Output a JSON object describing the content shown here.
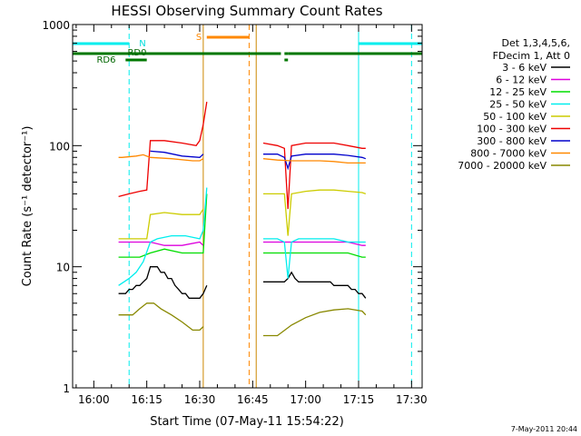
{
  "chart_data": {
    "type": "line",
    "title": "HESSI Observing Summary Count Rates",
    "xlabel": "Start Time (07-May-11 15:54:22)",
    "ylabel": "Count Rate (s⁻¹ detector⁻¹)",
    "yscale": "log",
    "xlim": [
      "15:54",
      "17:33"
    ],
    "ylim": [
      1,
      1000
    ],
    "x_ticks": [
      "16:00",
      "16:15",
      "16:30",
      "16:45",
      "17:00",
      "17:15",
      "17:30"
    ],
    "y_ticks": [
      "1",
      "10",
      "100",
      "1000"
    ],
    "grid": false,
    "legend_position": "right",
    "legend_header": [
      "Det 1,3,4,5,6,",
      "FDecim 1, Att 0"
    ],
    "timestamp": "7-May-2011 20:44",
    "series": [
      {
        "name": "3 - 6 keV",
        "color": "#000000",
        "x": [
          "16:07",
          "16:08",
          "16:09",
          "16:10",
          "16:11",
          "16:12",
          "16:13",
          "16:14",
          "16:15",
          "16:16",
          "16:17",
          "16:18",
          "16:19",
          "16:20",
          "16:21",
          "16:22",
          "16:23",
          "16:24",
          "16:25",
          "16:26",
          "16:27",
          "16:28",
          "16:29",
          "16:30",
          "16:31",
          "16:32"
        ],
        "y": [
          6,
          6,
          6,
          6.5,
          6.5,
          7,
          7,
          7.5,
          8,
          10,
          10,
          10,
          9,
          9,
          8,
          8,
          7,
          6.5,
          6,
          6,
          5.5,
          5.5,
          5.5,
          5.5,
          6,
          7
        ]
      },
      {
        "name": "3 - 6 keV",
        "color": "#000000",
        "x": [
          "16:48",
          "16:49",
          "16:50",
          "16:51",
          "16:52",
          "16:53",
          "16:54",
          "16:55",
          "16:56",
          "16:57",
          "16:58",
          "16:59",
          "17:00",
          "17:01",
          "17:02",
          "17:03",
          "17:04",
          "17:05",
          "17:06",
          "17:07",
          "17:08",
          "17:09",
          "17:10",
          "17:11",
          "17:12",
          "17:13",
          "17:14",
          "17:15",
          "17:16",
          "17:17"
        ],
        "y": [
          7.5,
          7.5,
          7.5,
          7.5,
          7.5,
          7.5,
          7.5,
          8,
          9,
          8,
          7.5,
          7.5,
          7.5,
          7.5,
          7.5,
          7.5,
          7.5,
          7.5,
          7.5,
          7.5,
          7,
          7,
          7,
          7,
          7,
          6.5,
          6.5,
          6,
          6,
          5.5
        ]
      },
      {
        "name": "6 - 12 keV",
        "color": "#dd00dd",
        "x": [
          "16:07",
          "16:10",
          "16:13",
          "16:16",
          "16:20",
          "16:25",
          "16:30",
          "16:31"
        ],
        "y": [
          16,
          16,
          16,
          16,
          15,
          15,
          16,
          15
        ]
      },
      {
        "name": "6 - 12 keV",
        "color": "#dd00dd",
        "x": [
          "16:48",
          "16:52",
          "16:56",
          "17:00",
          "17:04",
          "17:08",
          "17:12",
          "17:16",
          "17:17"
        ],
        "y": [
          16,
          16,
          16,
          16,
          16,
          16,
          16,
          15,
          15
        ]
      },
      {
        "name": "12 - 25 keV",
        "color": "#00dd00",
        "x": [
          "16:07",
          "16:10",
          "16:13",
          "16:16",
          "16:20",
          "16:25",
          "16:30",
          "16:31",
          "16:32"
        ],
        "y": [
          12,
          12,
          12,
          13,
          14,
          13,
          13,
          13,
          40
        ]
      },
      {
        "name": "12 - 25 keV",
        "color": "#00dd00",
        "x": [
          "16:48",
          "16:52",
          "16:56",
          "17:00",
          "17:04",
          "17:08",
          "17:12",
          "17:16",
          "17:17"
        ],
        "y": [
          13,
          13,
          13,
          13,
          13,
          13,
          13,
          12,
          12
        ]
      },
      {
        "name": "25 - 50 keV",
        "color": "#00eeee",
        "x": [
          "16:07",
          "16:10",
          "16:12",
          "16:14",
          "16:16",
          "16:18",
          "16:22",
          "16:26",
          "16:30",
          "16:31",
          "16:32"
        ],
        "y": [
          7,
          8,
          9,
          11,
          16,
          17,
          18,
          18,
          17,
          20,
          45
        ]
      },
      {
        "name": "25 - 50 keV",
        "color": "#00eeee",
        "x": [
          "16:48",
          "16:50",
          "16:52",
          "16:54",
          "16:55",
          "16:56",
          "16:58",
          "17:00",
          "17:04",
          "17:08",
          "17:12",
          "17:16",
          "17:17"
        ],
        "y": [
          17,
          17,
          17,
          16,
          8,
          16,
          17,
          17,
          17,
          17,
          16,
          16,
          16
        ]
      },
      {
        "name": "50 - 100 keV",
        "color": "#cccc00",
        "x": [
          "16:07",
          "16:10",
          "16:13",
          "16:15",
          "16:16",
          "16:20",
          "16:25",
          "16:30",
          "16:31"
        ],
        "y": [
          17,
          17,
          17,
          17,
          27,
          28,
          27,
          27,
          30
        ]
      },
      {
        "name": "50 - 100 keV",
        "color": "#cccc00",
        "x": [
          "16:48",
          "16:52",
          "16:54",
          "16:55",
          "16:56",
          "17:00",
          "17:04",
          "17:08",
          "17:12",
          "17:16",
          "17:17"
        ],
        "y": [
          40,
          40,
          40,
          18,
          40,
          42,
          43,
          43,
          42,
          41,
          40
        ]
      },
      {
        "name": "100 - 300 keV",
        "color": "#ee0000",
        "x": [
          "16:07",
          "16:10",
          "16:13",
          "16:15",
          "16:16",
          "16:20",
          "16:25",
          "16:29",
          "16:30",
          "16:31",
          "16:32"
        ],
        "y": [
          38,
          40,
          42,
          43,
          110,
          110,
          105,
          100,
          110,
          150,
          230
        ]
      },
      {
        "name": "100 - 300 keV",
        "color": "#ee0000",
        "x": [
          "16:48",
          "16:52",
          "16:54",
          "16:55",
          "16:56",
          "17:00",
          "17:04",
          "17:08",
          "17:12",
          "17:16",
          "17:17"
        ],
        "y": [
          105,
          100,
          95,
          30,
          100,
          105,
          105,
          105,
          100,
          95,
          95
        ]
      },
      {
        "name": "300 - 800 keV",
        "color": "#0000cc",
        "x": [
          "16:16",
          "16:20",
          "16:25",
          "16:30",
          "16:31"
        ],
        "y": [
          90,
          88,
          82,
          80,
          85
        ]
      },
      {
        "name": "300 - 800 keV",
        "color": "#0000cc",
        "x": [
          "16:48",
          "16:52",
          "16:54",
          "16:55",
          "16:56",
          "17:00",
          "17:04",
          "17:08",
          "17:12",
          "17:16",
          "17:17"
        ],
        "y": [
          85,
          85,
          80,
          65,
          82,
          85,
          85,
          85,
          83,
          80,
          78
        ]
      },
      {
        "name": "800 - 7000 keV",
        "color": "#ff8800",
        "x": [
          "16:07",
          "16:08",
          "16:12",
          "16:14",
          "16:16",
          "16:22",
          "16:28",
          "16:30",
          "16:31"
        ],
        "y": [
          80,
          80,
          82,
          84,
          80,
          78,
          75,
          75,
          78
        ]
      },
      {
        "name": "800 - 7000 keV",
        "color": "#ff8800",
        "x": [
          "16:48",
          "16:52",
          "16:56",
          "17:00",
          "17:04",
          "17:08",
          "17:12",
          "17:16",
          "17:17"
        ],
        "y": [
          78,
          76,
          75,
          75,
          75,
          74,
          72,
          72,
          72
        ]
      },
      {
        "name": "7000 - 20000 keV",
        "color": "#888800",
        "x": [
          "16:07",
          "16:09",
          "16:11",
          "16:13",
          "16:15",
          "16:17",
          "16:19",
          "16:22",
          "16:25",
          "16:28",
          "16:30",
          "16:31"
        ],
        "y": [
          4,
          4,
          4,
          4.5,
          5,
          5,
          4.5,
          4,
          3.5,
          3,
          3,
          3.2
        ]
      },
      {
        "name": "7000 - 20000 keV",
        "color": "#888800",
        "x": [
          "16:48",
          "16:52",
          "16:56",
          "17:00",
          "17:04",
          "17:08",
          "17:12",
          "17:16",
          "17:17"
        ],
        "y": [
          2.7,
          2.7,
          3.3,
          3.8,
          4.2,
          4.4,
          4.5,
          4.3,
          4.0
        ]
      }
    ],
    "flag_labels": [
      {
        "text": "N",
        "color": "#00dddd"
      },
      {
        "text": "RD0",
        "color": "#006600"
      },
      {
        "text": "RD6",
        "color": "#006600"
      },
      {
        "text": "S",
        "color": "#ff8800"
      }
    ],
    "flag_bars": [
      {
        "type": "N",
        "color": "#00eeee",
        "x0": "15:54",
        "x1": "16:10"
      },
      {
        "type": "N",
        "color": "#00eeee",
        "x0": "17:15",
        "x1": "17:33"
      },
      {
        "type": "RD0",
        "color": "#007700",
        "x0": "15:54",
        "x1": "16:53"
      },
      {
        "type": "RD0",
        "color": "#007700",
        "x0": "16:54",
        "x1": "16:55"
      },
      {
        "type": "RD0",
        "color": "#007700",
        "x0": "16:55",
        "x1": "17:33"
      },
      {
        "type": "RD6",
        "color": "#007700",
        "x0": "16:09",
        "x1": "16:15"
      },
      {
        "type": "RD6",
        "color": "#007700",
        "x0": "16:54",
        "x1": "16:55"
      },
      {
        "type": "S",
        "color": "#ff8800",
        "x0": "16:32",
        "x1": "16:44"
      }
    ],
    "vlines": [
      {
        "x": "15:54",
        "color": "#00eeee",
        "style": "solid"
      },
      {
        "x": "16:10",
        "color": "#00eeee",
        "style": "dashed"
      },
      {
        "x": "16:31",
        "color": "#cc8800",
        "style": "solid"
      },
      {
        "x": "16:44",
        "color": "#ff8800",
        "style": "dashed"
      },
      {
        "x": "16:46",
        "color": "#cc8800",
        "style": "solid"
      },
      {
        "x": "17:15",
        "color": "#00eeee",
        "style": "solid"
      },
      {
        "x": "17:30",
        "color": "#00eeee",
        "style": "dashed"
      }
    ]
  }
}
